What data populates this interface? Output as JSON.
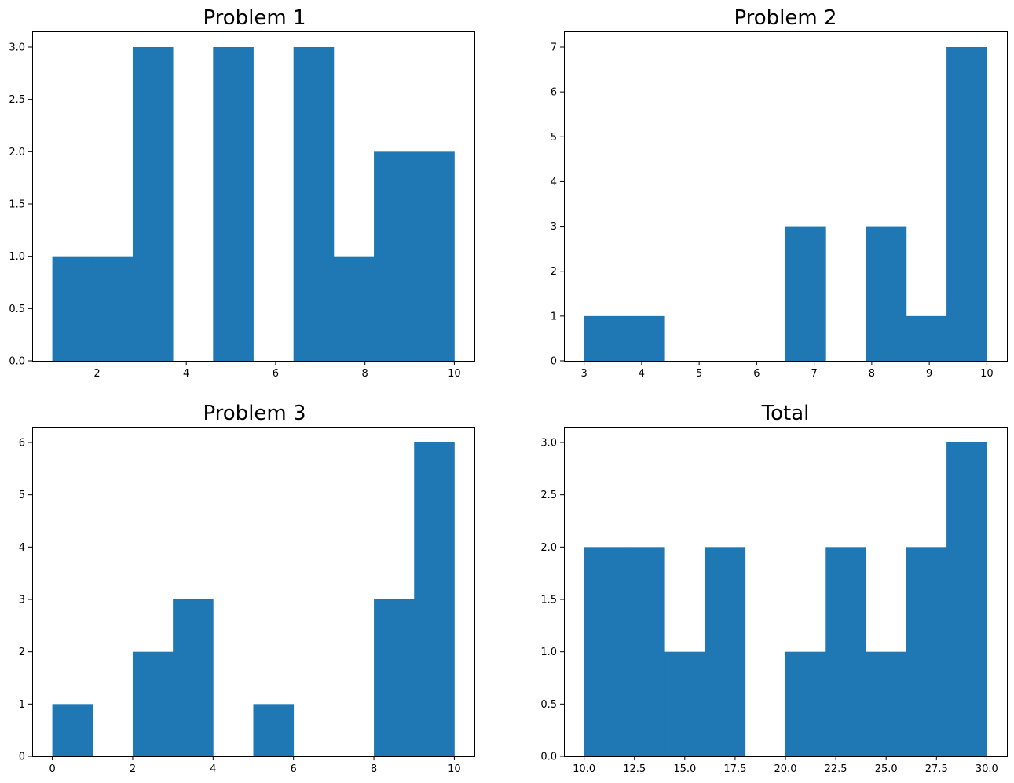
{
  "colors": {
    "bar": "#1f77b4",
    "spine": "#000000",
    "background": "#ffffff"
  },
  "chart_data": [
    {
      "type": "bar",
      "title": "Problem 1",
      "xlabel": "",
      "ylabel": "",
      "bin_edges": [
        1.0,
        1.9,
        2.8,
        3.7,
        4.6,
        5.5,
        6.4,
        7.3,
        8.2,
        9.1,
        10.0
      ],
      "values": [
        1,
        1,
        3,
        0,
        3,
        0,
        3,
        1,
        2,
        2
      ],
      "xlim": [
        0.55,
        10.45
      ],
      "ylim": [
        0,
        3.15
      ],
      "xticks": [
        2,
        4,
        6,
        8,
        10
      ],
      "xtick_labels": [
        "2",
        "4",
        "6",
        "8",
        "10"
      ],
      "yticks": [
        0.0,
        0.5,
        1.0,
        1.5,
        2.0,
        2.5,
        3.0
      ],
      "ytick_labels": [
        "0.0",
        "0.5",
        "1.0",
        "1.5",
        "2.0",
        "2.5",
        "3.0"
      ],
      "grid": false
    },
    {
      "type": "bar",
      "title": "Problem 2",
      "xlabel": "",
      "ylabel": "",
      "bin_edges": [
        3.0,
        3.7,
        4.4,
        5.1,
        5.8,
        6.5,
        7.2,
        7.9,
        8.6,
        9.3,
        10.0
      ],
      "values": [
        1,
        1,
        0,
        0,
        0,
        3,
        0,
        3,
        1,
        7
      ],
      "xlim": [
        2.65,
        10.35
      ],
      "ylim": [
        0,
        7.35
      ],
      "xticks": [
        3,
        4,
        5,
        6,
        7,
        8,
        9,
        10
      ],
      "xtick_labels": [
        "3",
        "4",
        "5",
        "6",
        "7",
        "8",
        "9",
        "10"
      ],
      "yticks": [
        0,
        1,
        2,
        3,
        4,
        5,
        6,
        7
      ],
      "ytick_labels": [
        "0",
        "1",
        "2",
        "3",
        "4",
        "5",
        "6",
        "7"
      ],
      "grid": false
    },
    {
      "type": "bar",
      "title": "Problem 3",
      "xlabel": "",
      "ylabel": "",
      "bin_edges": [
        0,
        1,
        2,
        3,
        4,
        5,
        6,
        7,
        8,
        9,
        10
      ],
      "values": [
        1,
        0,
        2,
        3,
        0,
        1,
        0,
        0,
        3,
        6
      ],
      "xlim": [
        -0.5,
        10.5
      ],
      "ylim": [
        0,
        6.3
      ],
      "xticks": [
        0,
        2,
        4,
        6,
        8,
        10
      ],
      "xtick_labels": [
        "0",
        "2",
        "4",
        "6",
        "8",
        "10"
      ],
      "yticks": [
        0,
        1,
        2,
        3,
        4,
        5,
        6
      ],
      "ytick_labels": [
        "0",
        "1",
        "2",
        "3",
        "4",
        "5",
        "6"
      ],
      "grid": false
    },
    {
      "type": "bar",
      "title": "Total",
      "xlabel": "",
      "ylabel": "",
      "bin_edges": [
        10,
        12,
        14,
        16,
        18,
        20,
        22,
        24,
        26,
        28,
        30
      ],
      "values": [
        2,
        2,
        1,
        2,
        0,
        1,
        2,
        1,
        2,
        3
      ],
      "xlim": [
        9.0,
        31.0
      ],
      "ylim": [
        0,
        3.15
      ],
      "xticks": [
        10.0,
        12.5,
        15.0,
        17.5,
        20.0,
        22.5,
        25.0,
        27.5,
        30.0
      ],
      "xtick_labels": [
        "10.0",
        "12.5",
        "15.0",
        "17.5",
        "20.0",
        "22.5",
        "25.0",
        "27.5",
        "30.0"
      ],
      "yticks": [
        0.0,
        0.5,
        1.0,
        1.5,
        2.0,
        2.5,
        3.0
      ],
      "ytick_labels": [
        "0.0",
        "0.5",
        "1.0",
        "1.5",
        "2.0",
        "2.5",
        "3.0"
      ],
      "grid": false
    }
  ]
}
